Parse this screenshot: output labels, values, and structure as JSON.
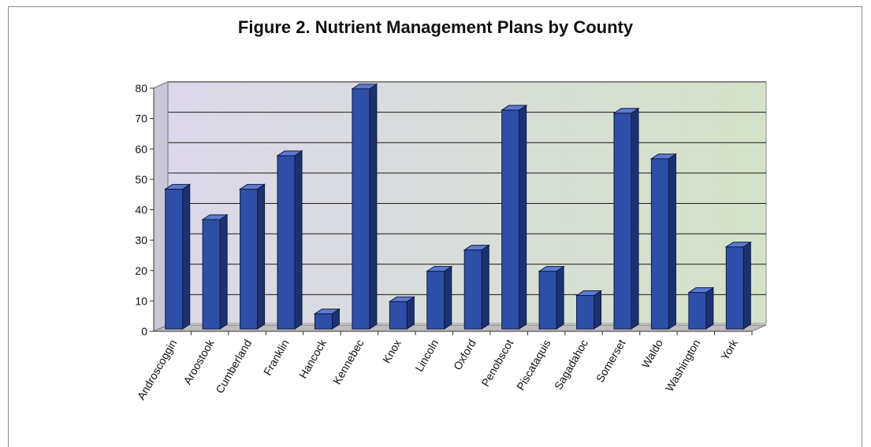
{
  "chart_data": {
    "type": "bar",
    "title": "Figure 2. Nutrient Management Plans by County",
    "xlabel": "",
    "ylabel": "",
    "ylim": [
      0,
      80
    ],
    "yticks": [
      0,
      10,
      20,
      30,
      40,
      50,
      60,
      70,
      80
    ],
    "categories": [
      "Androscoggin",
      "Aroostook",
      "Cumberland",
      "Franklin",
      "Hancock",
      "Kennebec",
      "Knox",
      "Lincoln",
      "Oxford",
      "Penobscot",
      "Piscataquis",
      "Sagadahoc",
      "Somerset",
      "Waldo",
      "Washington",
      "York"
    ],
    "values": [
      46,
      36,
      46,
      57,
      5,
      79,
      9,
      19,
      26,
      72,
      19,
      11,
      71,
      56,
      12,
      27
    ],
    "grid": true,
    "legend": "none",
    "colors": {
      "bar_front": "#2e4fa8",
      "bar_side": "#1c3270",
      "bar_top": "#5d7ad0",
      "plot_bg_start": "#dcd8ea",
      "plot_bg_end": "#d4e2c8"
    }
  }
}
